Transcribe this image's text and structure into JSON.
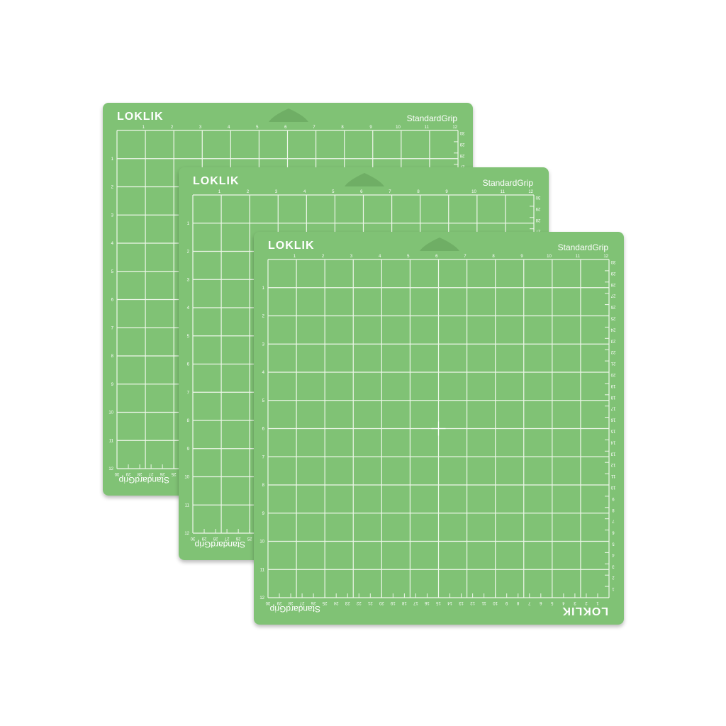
{
  "colors": {
    "mat": "#80c275",
    "lines": "#eef7ea",
    "notch": "#6fae65"
  },
  "mats": [
    {
      "brand": "LOKLIK",
      "grip_label": "StandardGrip"
    },
    {
      "brand": "LOKLIK",
      "grip_label": "StandardGrip"
    },
    {
      "brand": "LOKLIK",
      "grip_label": "StandardGrip"
    }
  ],
  "inch_labels": [
    "1",
    "2",
    "3",
    "4",
    "5",
    "6",
    "7",
    "8",
    "9",
    "10",
    "11",
    "12"
  ],
  "cm_labels": [
    "1",
    "2",
    "3",
    "4",
    "5",
    "6",
    "7",
    "8",
    "9",
    "10",
    "11",
    "12",
    "13",
    "14",
    "15",
    "16",
    "17",
    "18",
    "19",
    "20",
    "21",
    "22",
    "23",
    "24",
    "25",
    "26",
    "27",
    "28",
    "29",
    "30"
  ]
}
